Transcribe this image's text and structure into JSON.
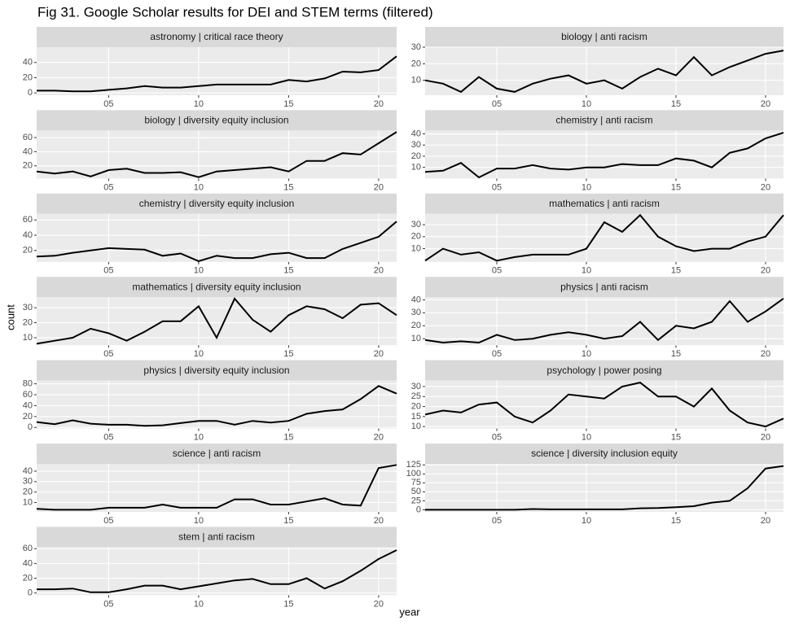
{
  "title": "Fig 31. Google Scholar results for DEI and STEM terms (filtered)",
  "x_label": "year",
  "y_label": "count",
  "chart_data": [
    {
      "type": "line",
      "title": "astronomy | critical race theory",
      "color": "#000000",
      "x": [
        1,
        2,
        3,
        4,
        5,
        6,
        7,
        8,
        9,
        10,
        11,
        12,
        13,
        14,
        15,
        16,
        17,
        18,
        19,
        20,
        21
      ],
      "values": [
        3,
        3,
        2,
        2,
        4,
        6,
        9,
        7,
        7,
        9,
        11,
        11,
        11,
        11,
        17,
        15,
        19,
        28,
        27,
        30,
        48
      ],
      "xlim": [
        1,
        21
      ],
      "xticks": [
        {
          "value": 5,
          "label": "05"
        },
        {
          "value": 10,
          "label": "10"
        },
        {
          "value": 15,
          "label": "15"
        },
        {
          "value": 20,
          "label": "20"
        }
      ],
      "ylim": [
        -3,
        60
      ],
      "yticks": [
        0,
        20,
        40
      ]
    },
    {
      "type": "line",
      "title": "biology | anti racism",
      "color": "#000000",
      "x": [
        1,
        2,
        3,
        4,
        5,
        6,
        7,
        8,
        9,
        10,
        11,
        12,
        13,
        14,
        15,
        16,
        17,
        18,
        19,
        20,
        21
      ],
      "values": [
        10,
        8,
        3,
        12,
        5,
        3,
        8,
        11,
        13,
        8,
        10,
        5,
        12,
        17,
        13,
        24,
        13,
        18,
        22,
        26,
        28
      ],
      "xlim": [
        1,
        21
      ],
      "xticks": [
        {
          "value": 5,
          "label": "05"
        },
        {
          "value": 10,
          "label": "10"
        },
        {
          "value": 15,
          "label": "15"
        },
        {
          "value": 20,
          "label": "20"
        }
      ],
      "ylim": [
        1,
        30
      ],
      "yticks": [
        10,
        20,
        30
      ]
    },
    {
      "type": "line",
      "title": "biology | diversity equity inclusion",
      "color": "#000000",
      "x": [
        1,
        2,
        3,
        4,
        5,
        6,
        7,
        8,
        9,
        10,
        11,
        12,
        13,
        14,
        15,
        16,
        17,
        18,
        19,
        20,
        21
      ],
      "values": [
        12,
        9,
        12,
        5,
        14,
        16,
        10,
        10,
        11,
        4,
        12,
        14,
        16,
        18,
        12,
        27,
        27,
        38,
        36,
        52,
        68
      ],
      "xlim": [
        1,
        21
      ],
      "xticks": [
        {
          "value": 5,
          "label": "05"
        },
        {
          "value": 10,
          "label": "10"
        },
        {
          "value": 15,
          "label": "15"
        },
        {
          "value": 20,
          "label": "20"
        }
      ],
      "ylim": [
        2,
        70
      ],
      "yticks": [
        20,
        40,
        60
      ]
    },
    {
      "type": "line",
      "title": "chemistry | anti racism",
      "color": "#000000",
      "x": [
        1,
        2,
        3,
        4,
        5,
        6,
        7,
        8,
        9,
        10,
        11,
        12,
        13,
        14,
        15,
        16,
        17,
        18,
        19,
        20,
        21
      ],
      "values": [
        6,
        7,
        14,
        1,
        9,
        9,
        12,
        9,
        8,
        10,
        10,
        13,
        12,
        12,
        18,
        16,
        10,
        23,
        27,
        36,
        41
      ],
      "xlim": [
        1,
        21
      ],
      "xticks": [
        {
          "value": 5,
          "label": "05"
        },
        {
          "value": 10,
          "label": "10"
        },
        {
          "value": 15,
          "label": "15"
        },
        {
          "value": 20,
          "label": "20"
        }
      ],
      "ylim": [
        0,
        43
      ],
      "yticks": [
        10,
        20,
        30,
        40
      ]
    },
    {
      "type": "line",
      "title": "chemistry | diversity equity inclusion",
      "color": "#000000",
      "x": [
        1,
        2,
        3,
        4,
        5,
        6,
        7,
        8,
        9,
        10,
        11,
        12,
        13,
        14,
        15,
        16,
        17,
        18,
        19,
        20,
        21
      ],
      "values": [
        12,
        13,
        17,
        20,
        23,
        22,
        21,
        13,
        16,
        6,
        13,
        10,
        10,
        15,
        17,
        10,
        10,
        22,
        30,
        38,
        58
      ],
      "xlim": [
        1,
        21
      ],
      "xticks": [
        {
          "value": 5,
          "label": "05"
        },
        {
          "value": 10,
          "label": "10"
        },
        {
          "value": 15,
          "label": "15"
        },
        {
          "value": 20,
          "label": "20"
        }
      ],
      "ylim": [
        5,
        68
      ],
      "yticks": [
        20,
        40,
        60
      ]
    },
    {
      "type": "line",
      "title": "mathematics | anti racism",
      "color": "#000000",
      "x": [
        1,
        2,
        3,
        4,
        5,
        6,
        7,
        8,
        9,
        10,
        11,
        12,
        13,
        14,
        15,
        16,
        17,
        18,
        19,
        20,
        21
      ],
      "values": [
        0,
        10,
        5,
        7,
        0,
        3,
        5,
        5,
        5,
        10,
        32,
        24,
        38,
        20,
        12,
        8,
        10,
        10,
        16,
        20,
        38
      ],
      "xlim": [
        1,
        21
      ],
      "xticks": [
        {
          "value": 5,
          "label": "05"
        },
        {
          "value": 10,
          "label": "10"
        },
        {
          "value": 15,
          "label": "15"
        },
        {
          "value": 20,
          "label": "20"
        }
      ],
      "ylim": [
        -1,
        39
      ],
      "yticks": [
        10,
        20,
        30
      ]
    },
    {
      "type": "line",
      "title": "mathematics | diversity equity inclusion",
      "color": "#000000",
      "x": [
        1,
        2,
        3,
        4,
        5,
        6,
        7,
        8,
        9,
        10,
        11,
        12,
        13,
        14,
        15,
        16,
        17,
        18,
        19,
        20,
        21
      ],
      "values": [
        6,
        8,
        10,
        16,
        13,
        8,
        14,
        21,
        21,
        31,
        10,
        36,
        22,
        14,
        25,
        31,
        29,
        23,
        32,
        33,
        25
      ],
      "xlim": [
        1,
        21
      ],
      "xticks": [
        {
          "value": 5,
          "label": "05"
        },
        {
          "value": 10,
          "label": "10"
        },
        {
          "value": 15,
          "label": "15"
        },
        {
          "value": 20,
          "label": "20"
        }
      ],
      "ylim": [
        5,
        37
      ],
      "yticks": [
        10,
        20,
        30
      ]
    },
    {
      "type": "line",
      "title": "physics | anti racism",
      "color": "#000000",
      "x": [
        1,
        2,
        3,
        4,
        5,
        6,
        7,
        8,
        9,
        10,
        11,
        12,
        13,
        14,
        15,
        16,
        17,
        18,
        19,
        20,
        21
      ],
      "values": [
        9,
        7,
        8,
        7,
        13,
        9,
        10,
        13,
        15,
        13,
        10,
        12,
        23,
        9,
        20,
        18,
        23,
        39,
        23,
        31,
        41
      ],
      "xlim": [
        1,
        21
      ],
      "xticks": [
        {
          "value": 5,
          "label": "05"
        },
        {
          "value": 10,
          "label": "10"
        },
        {
          "value": 15,
          "label": "15"
        },
        {
          "value": 20,
          "label": "20"
        }
      ],
      "ylim": [
        5,
        42
      ],
      "yticks": [
        10,
        20,
        30,
        40
      ]
    },
    {
      "type": "line",
      "title": "physics | diversity equity inclusion",
      "color": "#000000",
      "x": [
        1,
        2,
        3,
        4,
        5,
        6,
        7,
        8,
        9,
        10,
        11,
        12,
        13,
        14,
        15,
        16,
        17,
        18,
        19,
        20,
        21
      ],
      "values": [
        10,
        6,
        13,
        7,
        5,
        5,
        3,
        4,
        8,
        12,
        12,
        5,
        12,
        9,
        12,
        25,
        30,
        33,
        52,
        76,
        62
      ],
      "xlim": [
        1,
        21
      ],
      "xticks": [
        {
          "value": 5,
          "label": "05"
        },
        {
          "value": 10,
          "label": "10"
        },
        {
          "value": 15,
          "label": "15"
        },
        {
          "value": 20,
          "label": "20"
        }
      ],
      "ylim": [
        -2,
        86
      ],
      "yticks": [
        0,
        20,
        40,
        60,
        80
      ]
    },
    {
      "type": "line",
      "title": "psychology | power posing",
      "color": "#000000",
      "x": [
        1,
        2,
        3,
        4,
        5,
        6,
        7,
        8,
        9,
        10,
        11,
        12,
        13,
        14,
        15,
        16,
        17,
        18,
        19,
        20,
        21
      ],
      "values": [
        16,
        18,
        17,
        21,
        22,
        15,
        12,
        18,
        26,
        25,
        24,
        30,
        32,
        25,
        25,
        20,
        29,
        18,
        12,
        10,
        14
      ],
      "xlim": [
        1,
        21
      ],
      "xticks": [
        {
          "value": 5,
          "label": "05"
        },
        {
          "value": 10,
          "label": "10"
        },
        {
          "value": 15,
          "label": "15"
        },
        {
          "value": 20,
          "label": "20"
        }
      ],
      "ylim": [
        9,
        33
      ],
      "yticks": [
        10,
        15,
        20,
        25,
        30
      ]
    },
    {
      "type": "line",
      "title": "science | anti racism",
      "color": "#000000",
      "x": [
        1,
        2,
        3,
        4,
        5,
        6,
        7,
        8,
        9,
        10,
        11,
        12,
        13,
        14,
        15,
        16,
        17,
        18,
        19,
        20,
        21
      ],
      "values": [
        4,
        3,
        3,
        3,
        5,
        5,
        5,
        8,
        5,
        5,
        5,
        13,
        13,
        8,
        8,
        11,
        14,
        8,
        7,
        43,
        46
      ],
      "xlim": [
        1,
        21
      ],
      "xticks": [
        {
          "value": 5,
          "label": "05"
        },
        {
          "value": 10,
          "label": "10"
        },
        {
          "value": 15,
          "label": "15"
        },
        {
          "value": 20,
          "label": "20"
        }
      ],
      "ylim": [
        1,
        47
      ],
      "yticks": [
        10,
        20,
        30,
        40
      ]
    },
    {
      "type": "line",
      "title": "science | diversity inclusion equity",
      "color": "#000000",
      "x": [
        1,
        2,
        3,
        4,
        5,
        6,
        7,
        8,
        9,
        10,
        11,
        12,
        13,
        14,
        15,
        16,
        17,
        18,
        19,
        20,
        21
      ],
      "values": [
        0,
        0,
        0,
        0,
        0,
        0,
        2,
        1,
        1,
        1,
        1,
        1,
        4,
        5,
        7,
        10,
        20,
        25,
        60,
        115,
        122
      ],
      "xlim": [
        1,
        21
      ],
      "xticks": [
        {
          "value": 5,
          "label": "05"
        },
        {
          "value": 10,
          "label": "10"
        },
        {
          "value": 15,
          "label": "15"
        },
        {
          "value": 20,
          "label": "20"
        }
      ],
      "ylim": [
        -6,
        128
      ],
      "yticks": [
        0,
        25,
        50,
        75,
        100,
        125
      ]
    },
    {
      "type": "line",
      "title": "stem | anti racism",
      "color": "#000000",
      "x": [
        1,
        2,
        3,
        4,
        5,
        6,
        7,
        8,
        9,
        10,
        11,
        12,
        13,
        14,
        15,
        16,
        17,
        18,
        19,
        20,
        21
      ],
      "values": [
        5,
        5,
        6,
        1,
        1,
        5,
        10,
        10,
        5,
        9,
        13,
        17,
        19,
        12,
        12,
        20,
        6,
        16,
        30,
        46,
        58
      ],
      "xlim": [
        1,
        21
      ],
      "xticks": [
        {
          "value": 5,
          "label": "05"
        },
        {
          "value": 10,
          "label": "10"
        },
        {
          "value": 15,
          "label": "15"
        },
        {
          "value": 20,
          "label": "20"
        }
      ],
      "ylim": [
        -3,
        62
      ],
      "yticks": [
        0,
        20,
        40,
        60
      ]
    }
  ]
}
